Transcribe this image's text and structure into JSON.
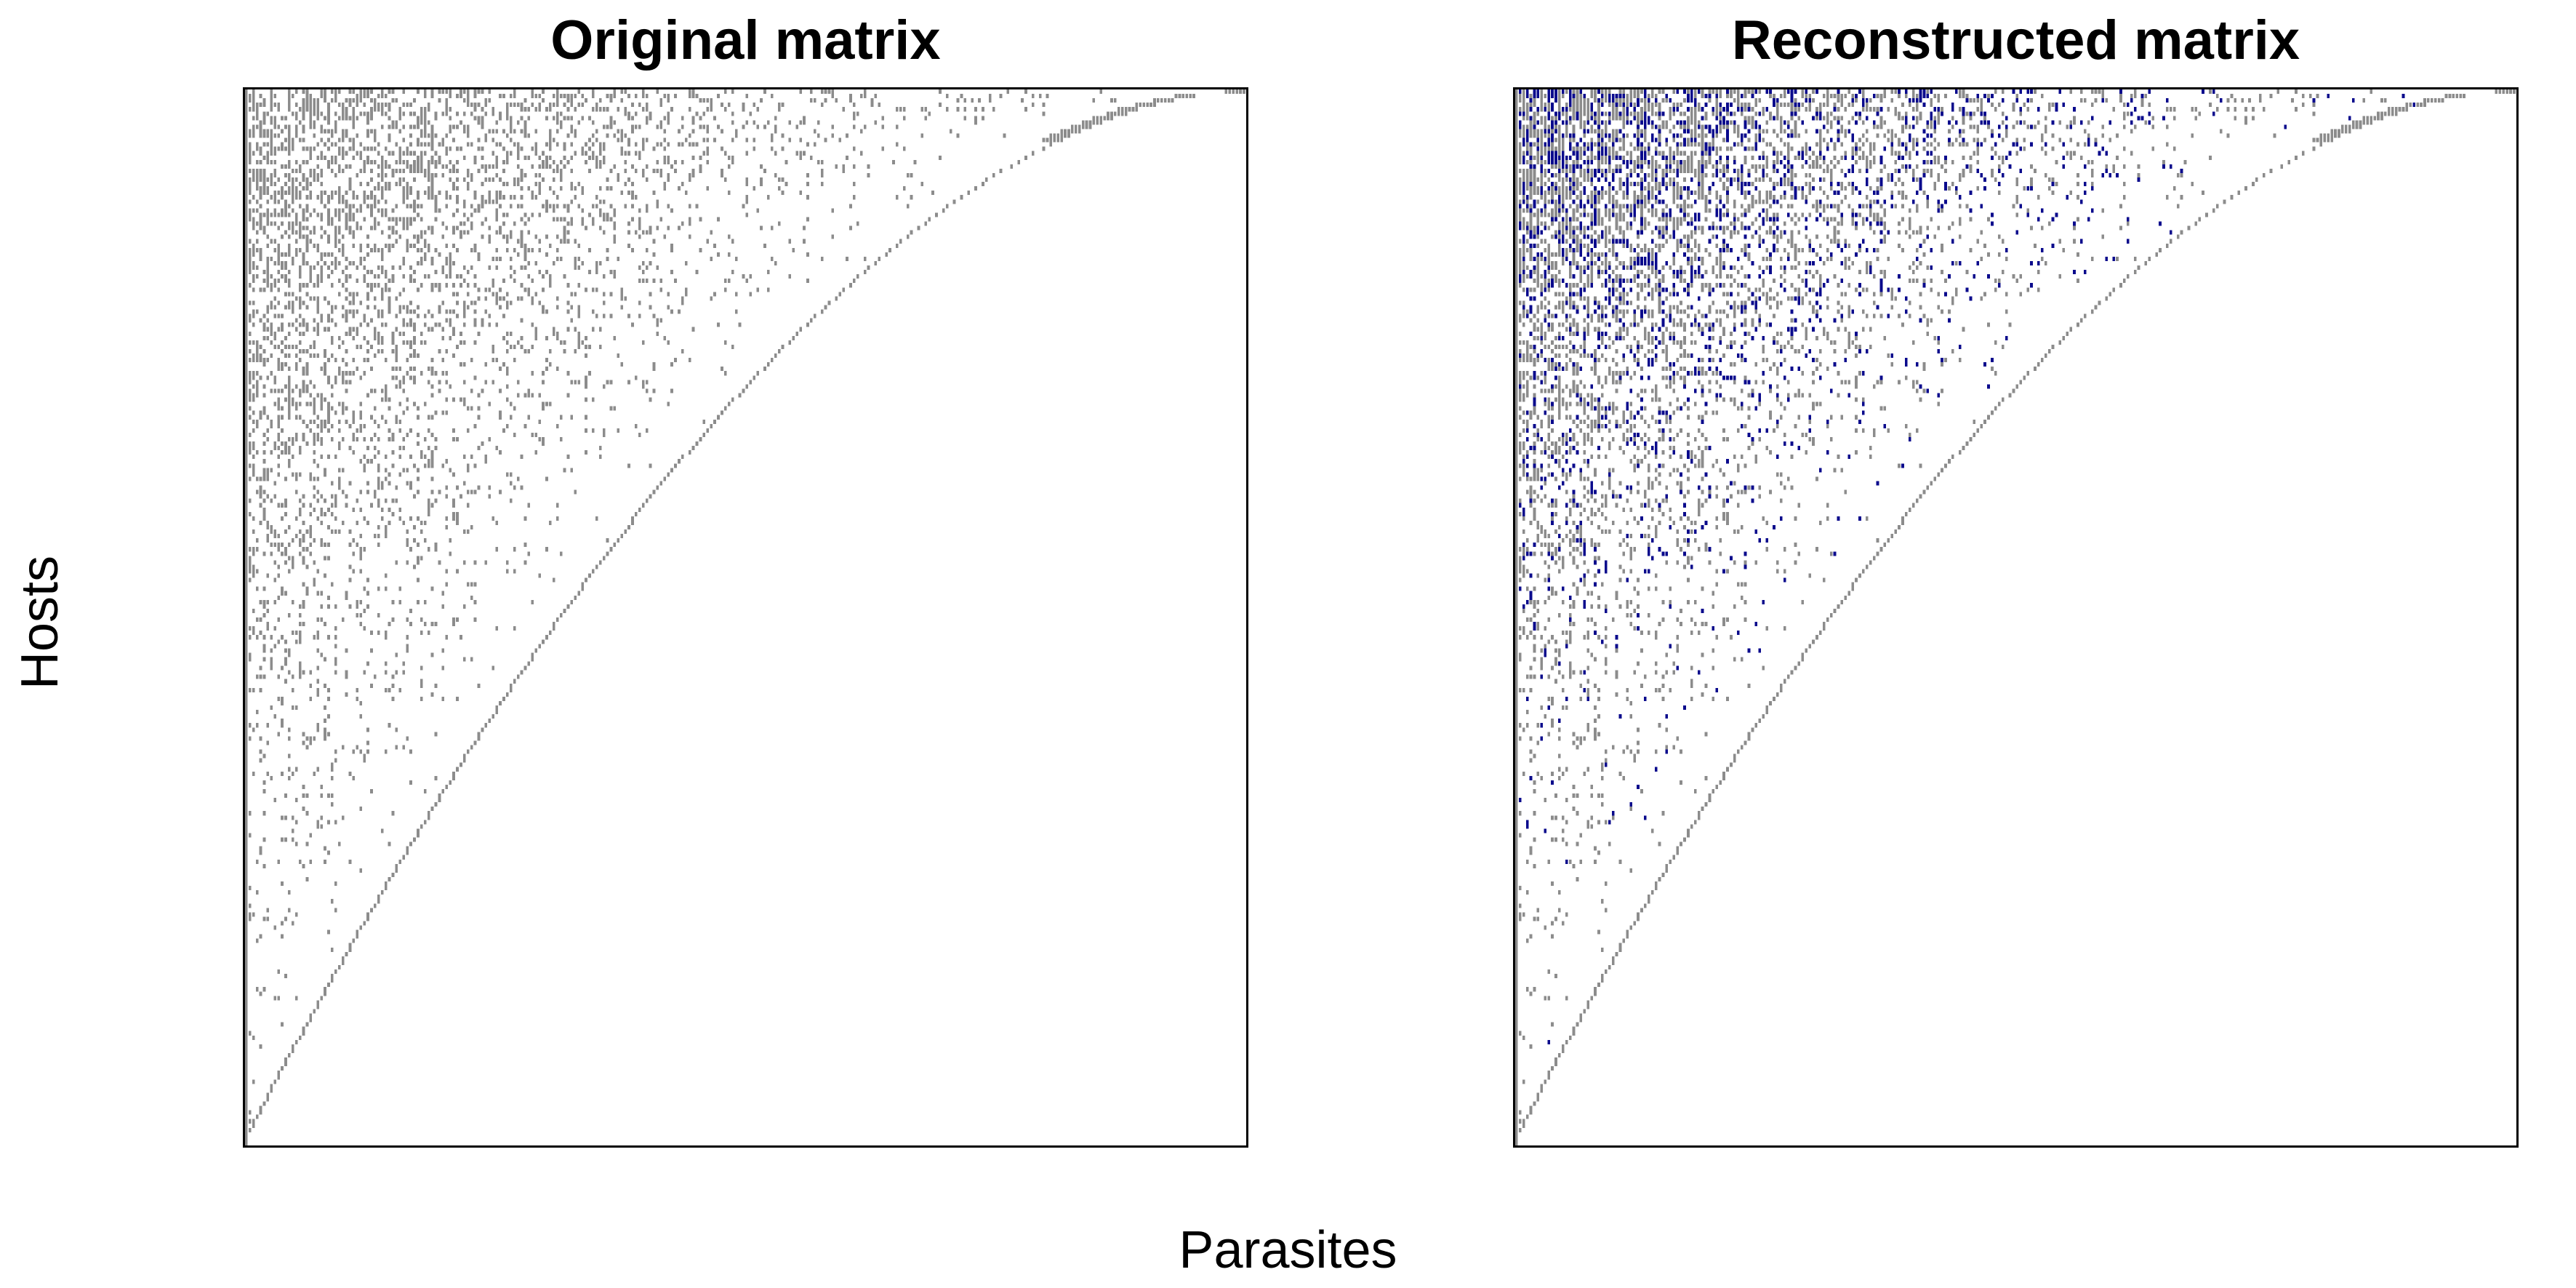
{
  "chart_data": [
    {
      "type": "heatmap",
      "title": "Original matrix",
      "xlabel": "Parasites",
      "ylabel": "Hosts",
      "rows": 240,
      "cols": 280,
      "grid": false,
      "legend": "none",
      "cell_states": [
        "absent",
        "observed"
      ],
      "colors": {
        "observed": "#8c8c8c",
        "absent": "#ffffff"
      },
      "structure": "nested presence/absence matrix: hosts sorted by degree (top = most parasites), parasites sorted by degree (left = most hosts); occupied cells fill the upper-left triangle above a frontier running from row 1 at the right edge to row 240 at the left edge"
    },
    {
      "type": "heatmap",
      "title": "Reconstructed matrix",
      "xlabel": "Parasites",
      "ylabel": "Hosts",
      "rows": 240,
      "cols": 280,
      "grid": false,
      "legend": "none",
      "cell_states": [
        "absent",
        "observed",
        "predicted"
      ],
      "colors": {
        "observed": "#8c8c8c",
        "predicted": "#0a0a8c",
        "absent": "#ffffff"
      },
      "structure": "same observed cells as the original matrix plus additional predicted links concentrated in the upper-left (high-degree hosts and parasites)"
    }
  ],
  "labels": {
    "left_title": "Original matrix",
    "right_title": "Reconstructed matrix",
    "x_axis": "Parasites",
    "y_axis": "Hosts"
  }
}
